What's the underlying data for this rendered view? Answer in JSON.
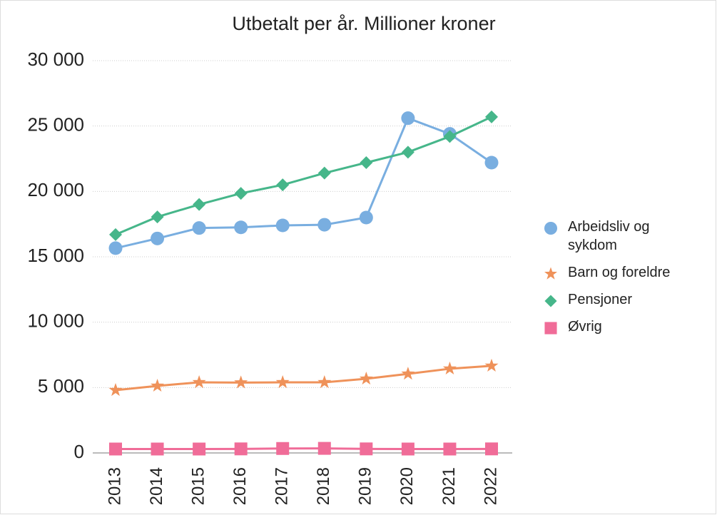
{
  "chart_data": {
    "type": "line",
    "title": "Utbetalt per år. Millioner kroner",
    "categories": [
      "2013",
      "2014",
      "2015",
      "2016",
      "2017",
      "2018",
      "2019",
      "2020",
      "2021",
      "2022"
    ],
    "series": [
      {
        "name": "Arbeidsliv og sykdom",
        "color": "#79aee0",
        "marker": "circle",
        "values": [
          15660,
          16400,
          17200,
          17250,
          17400,
          17450,
          18000,
          25600,
          24400,
          22200
        ]
      },
      {
        "name": "Barn og foreldre",
        "color": "#ef925a",
        "marker": "star",
        "values": [
          4800,
          5130,
          5400,
          5380,
          5400,
          5400,
          5670,
          6050,
          6440,
          6660
        ]
      },
      {
        "name": "Pensjoner",
        "color": "#46b68a",
        "marker": "diamond",
        "values": [
          16700,
          18050,
          19000,
          19850,
          20500,
          21400,
          22200,
          23000,
          24200,
          25700
        ]
      },
      {
        "name": "Øvrig",
        "color": "#f06c98",
        "marker": "square",
        "values": [
          300,
          300,
          300,
          310,
          340,
          350,
          310,
          300,
          300,
          310
        ]
      }
    ],
    "ylim": [
      0,
      30000
    ],
    "yticks": [
      {
        "value": 0,
        "label": "0"
      },
      {
        "value": 5000,
        "label": "5 000"
      },
      {
        "value": 10000,
        "label": "10 000"
      },
      {
        "value": 15000,
        "label": "15 000"
      },
      {
        "value": 20000,
        "label": "20 000"
      },
      {
        "value": 25000,
        "label": "25 000"
      },
      {
        "value": 30000,
        "label": "30 000"
      }
    ],
    "grid": true,
    "legend": "right"
  }
}
